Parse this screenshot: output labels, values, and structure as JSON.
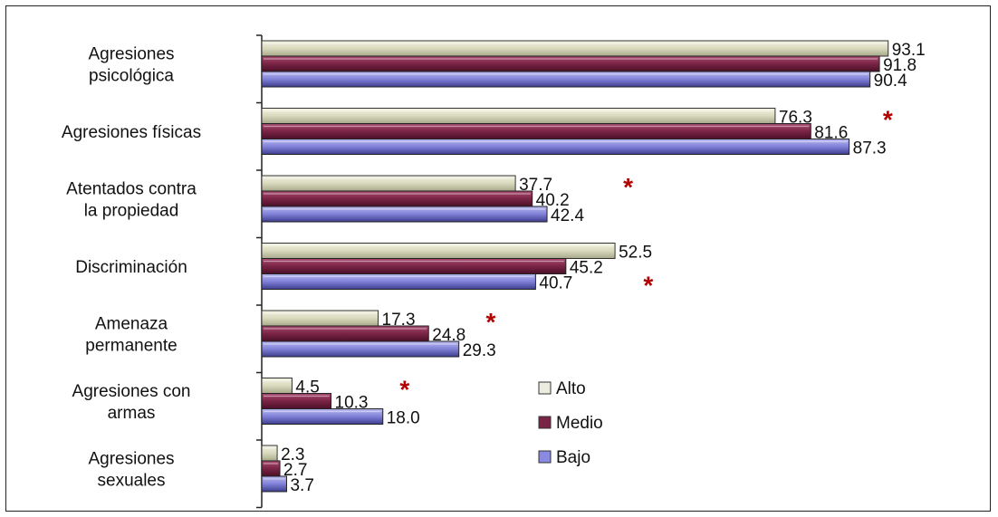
{
  "chart_data": {
    "type": "bar",
    "orientation": "horizontal",
    "title": "",
    "xlabel": "",
    "ylabel": "",
    "xlim": [
      0,
      100
    ],
    "grid": false,
    "legend_position": "bottom-right inside plot",
    "categories": [
      [
        "Agresiones",
        "psicológica"
      ],
      [
        "Agresiones físicas"
      ],
      [
        "Atentados contra",
        "la propiedad"
      ],
      [
        "Discriminación"
      ],
      [
        "Amenaza",
        "permanente"
      ],
      [
        "Agresiones con",
        "armas"
      ],
      [
        "Agresiones",
        "sexuales"
      ]
    ],
    "series": [
      {
        "name": "Alto",
        "color": "#dcdcc0",
        "values": [
          93.1,
          76.3,
          37.7,
          52.5,
          17.3,
          4.5,
          2.3
        ]
      },
      {
        "name": "Medio",
        "color": "#7a2445",
        "values": [
          91.8,
          81.6,
          40.2,
          45.2,
          24.8,
          10.3,
          2.7
        ]
      },
      {
        "name": "Bajo",
        "color": "#7f7fd6",
        "values": [
          90.4,
          87.3,
          42.4,
          40.7,
          29.3,
          18.0,
          3.7
        ]
      }
    ],
    "value_labels": [
      [
        "93.1",
        "91.8",
        "90.4"
      ],
      [
        "76.3",
        "81.6",
        "87.3"
      ],
      [
        "37.7",
        "40.2",
        "42.4"
      ],
      [
        "52.5",
        "45.2",
        "40.7"
      ],
      [
        "17.3",
        "24.8",
        "29.3"
      ],
      [
        "4.5",
        "10.3",
        "18.0"
      ],
      [
        "2.3",
        "2.7",
        "3.7"
      ]
    ],
    "significance_marker": "*",
    "significant": [
      {
        "category": 1,
        "series": 0
      },
      {
        "category": 2,
        "series": 0
      },
      {
        "category": 3,
        "series": 2
      },
      {
        "category": 4,
        "series": 0
      },
      {
        "category": 5,
        "series": 0
      }
    ]
  }
}
